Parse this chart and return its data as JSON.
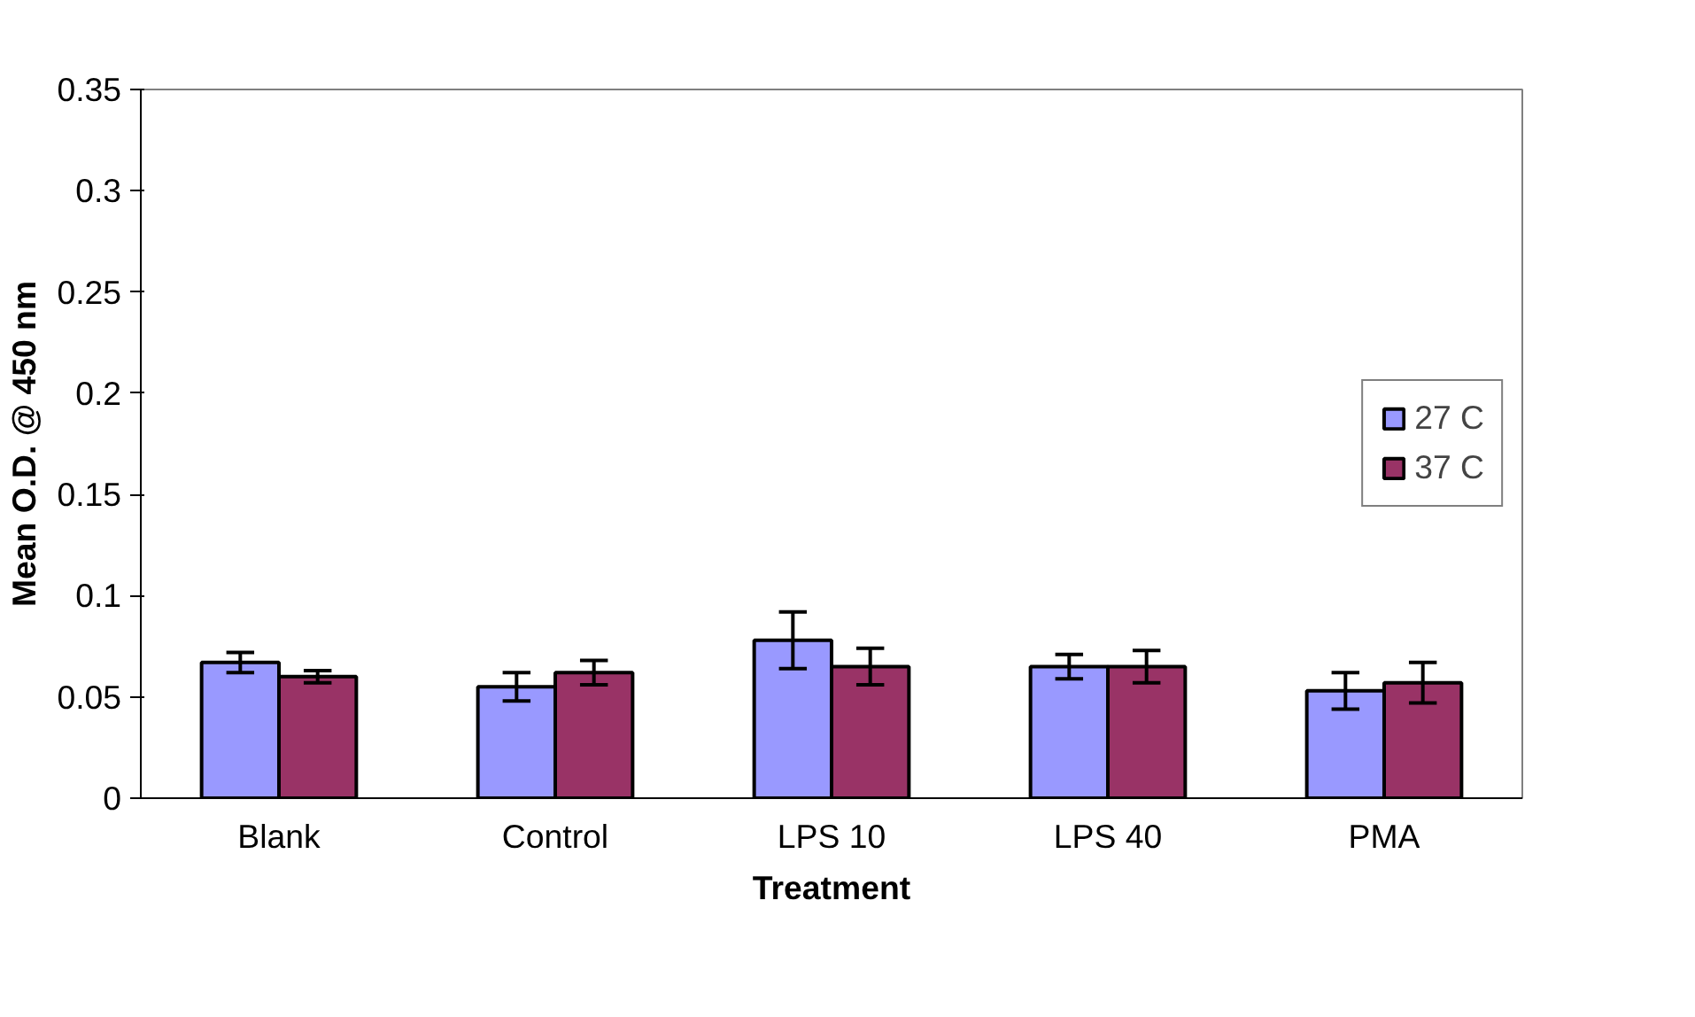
{
  "chart_data": {
    "type": "bar",
    "xlabel": "Treatment",
    "ylabel": "Mean O.D. @ 450 nm",
    "categories": [
      "Blank",
      "Control",
      "LPS 10",
      "LPS 40",
      "PMA"
    ],
    "series": [
      {
        "name": "27 C",
        "color": "#9999ff",
        "values": [
          0.067,
          0.055,
          0.078,
          0.065,
          0.053
        ],
        "errors": [
          0.005,
          0.007,
          0.014,
          0.006,
          0.009
        ]
      },
      {
        "name": "37 C",
        "color": "#993366",
        "values": [
          0.06,
          0.062,
          0.065,
          0.065,
          0.057
        ],
        "errors": [
          0.003,
          0.006,
          0.009,
          0.008,
          0.01
        ]
      }
    ],
    "ylim": [
      0,
      0.35
    ],
    "yticks": [
      0,
      0.05,
      0.1,
      0.15,
      0.2,
      0.25,
      0.3,
      0.35
    ],
    "grid": false,
    "legend": "right"
  }
}
